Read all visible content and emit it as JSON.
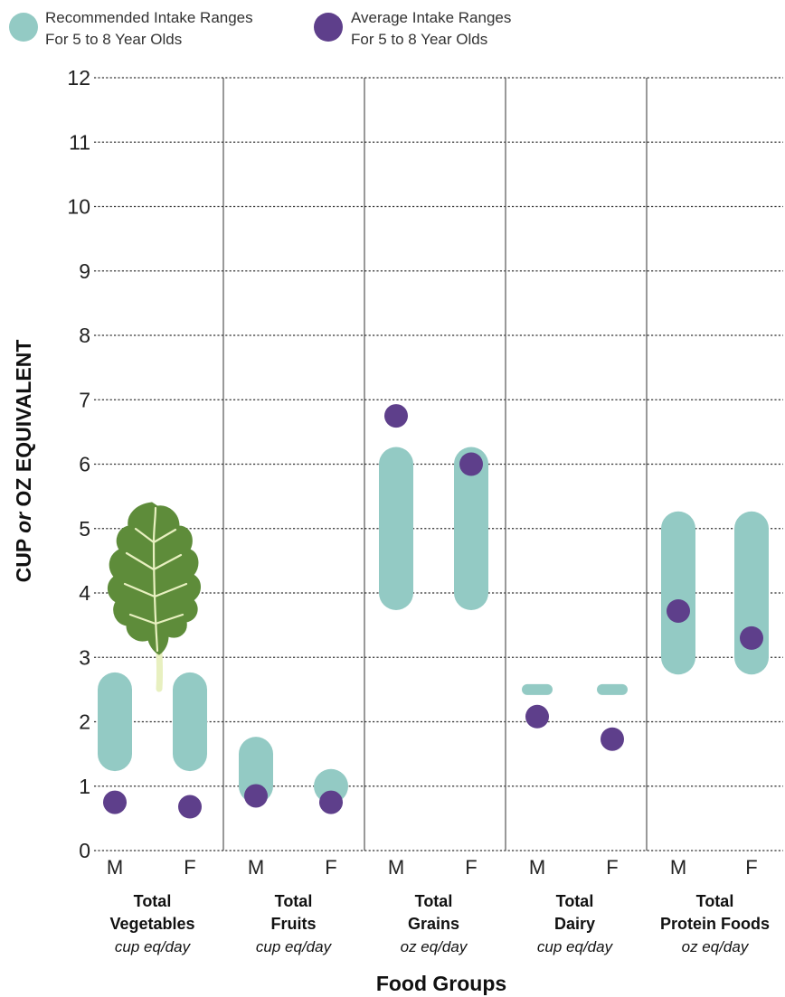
{
  "colors": {
    "recommended": "#93cac4",
    "average": "#5e3f8b",
    "kale_leaf": "#5e8c3a",
    "kale_vein": "#e8f0c0"
  },
  "decoration": {
    "icon": "kale-leaf-icon"
  },
  "chart_data": {
    "type": "range-dot",
    "ylabel_parts": [
      "CUP ",
      "or",
      " OZ EQUIVALENT"
    ],
    "xlabel": "Food Groups",
    "ylim": [
      0,
      12
    ],
    "yticks": [
      0,
      1,
      2,
      3,
      4,
      5,
      6,
      7,
      8,
      9,
      10,
      11,
      12
    ],
    "grid": true,
    "legend_position": "top-left",
    "legend": [
      {
        "key": "recommended",
        "lines": [
          "Recommended Intake Ranges",
          "For 5 to 8 Year Olds"
        ]
      },
      {
        "key": "average",
        "lines": [
          "Average Intake Ranges",
          "For 5 to 8 Year Olds"
        ]
      }
    ],
    "groups": [
      {
        "name_lines": [
          "Total",
          "Vegetables"
        ],
        "unit": "cup eq/day",
        "bars": [
          {
            "sex": "M",
            "recommended": [
              1.5,
              2.5
            ],
            "average": 0.75
          },
          {
            "sex": "F",
            "recommended": [
              1.5,
              2.5
            ],
            "average": 0.68
          }
        ]
      },
      {
        "name_lines": [
          "Total",
          "Fruits"
        ],
        "unit": "cup eq/day",
        "bars": [
          {
            "sex": "M",
            "recommended": [
              1,
              1.5
            ],
            "average": 0.85
          },
          {
            "sex": "F",
            "recommended": [
              1,
              1
            ],
            "average": 0.75
          }
        ]
      },
      {
        "name_lines": [
          "Total",
          "Grains"
        ],
        "unit": "oz eq/day",
        "bars": [
          {
            "sex": "M",
            "recommended": [
              4,
              6
            ],
            "average": 6.75
          },
          {
            "sex": "F",
            "recommended": [
              4,
              6
            ],
            "average": 6.0
          }
        ]
      },
      {
        "name_lines": [
          "Total",
          "Dairy"
        ],
        "unit": "cup eq/day",
        "bars": [
          {
            "sex": "M",
            "recommended": [
              2.5,
              2.5
            ],
            "average": 2.08
          },
          {
            "sex": "F",
            "recommended": [
              2.5,
              2.5
            ],
            "average": 1.73
          }
        ]
      },
      {
        "name_lines": [
          "Total",
          "Protein Foods"
        ],
        "unit": "oz eq/day",
        "bars": [
          {
            "sex": "M",
            "recommended": [
              3,
              5
            ],
            "average": 3.72
          },
          {
            "sex": "F",
            "recommended": [
              3,
              5
            ],
            "average": 3.3
          }
        ]
      }
    ]
  }
}
